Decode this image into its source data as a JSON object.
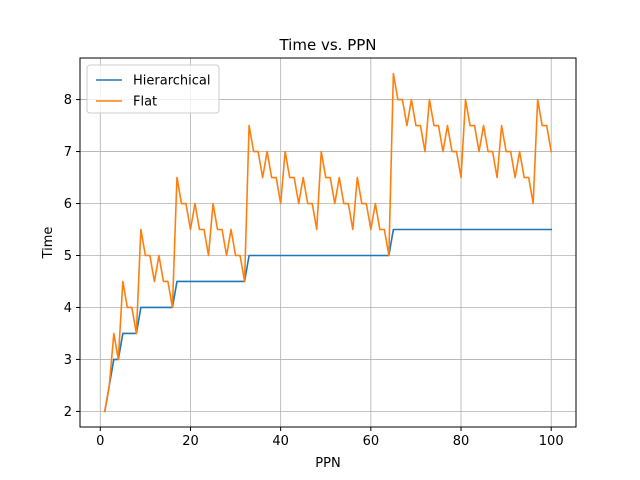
{
  "chart_data": {
    "type": "line",
    "title": "Time vs. PPN",
    "xlabel": "PPN",
    "ylabel": "Time",
    "xlim": [
      -4.5,
      105.5
    ],
    "ylim": [
      1.7,
      8.8
    ],
    "xticks": [
      0,
      20,
      40,
      60,
      80,
      100
    ],
    "yticks": [
      2,
      3,
      4,
      5,
      6,
      7,
      8
    ],
    "grid": true,
    "legend_position": "top-left",
    "colors": {
      "Hierarchical": "#1f77b4",
      "Flat": "#ff7f0e"
    },
    "x": [
      1,
      2,
      3,
      4,
      5,
      6,
      7,
      8,
      9,
      10,
      11,
      12,
      13,
      14,
      15,
      16,
      17,
      18,
      19,
      20,
      21,
      22,
      23,
      24,
      25,
      26,
      27,
      28,
      29,
      30,
      31,
      32,
      33,
      34,
      35,
      36,
      37,
      38,
      39,
      40,
      41,
      42,
      43,
      44,
      45,
      46,
      47,
      48,
      49,
      50,
      51,
      52,
      53,
      54,
      55,
      56,
      57,
      58,
      59,
      60,
      61,
      62,
      63,
      64,
      65,
      66,
      67,
      68,
      69,
      70,
      71,
      72,
      73,
      74,
      75,
      76,
      77,
      78,
      79,
      80,
      81,
      82,
      83,
      84,
      85,
      86,
      87,
      88,
      89,
      90,
      91,
      92,
      93,
      94,
      95,
      96,
      97,
      98,
      99,
      100
    ],
    "series": [
      {
        "name": "Hierarchical",
        "values": [
          2,
          2.5,
          3,
          3,
          3.5,
          3.5,
          3.5,
          3.5,
          4,
          4,
          4,
          4,
          4,
          4,
          4,
          4,
          4.5,
          4.5,
          4.5,
          4.5,
          4.5,
          4.5,
          4.5,
          4.5,
          4.5,
          4.5,
          4.5,
          4.5,
          4.5,
          4.5,
          4.5,
          4.5,
          5,
          5,
          5,
          5,
          5,
          5,
          5,
          5,
          5,
          5,
          5,
          5,
          5,
          5,
          5,
          5,
          5,
          5,
          5,
          5,
          5,
          5,
          5,
          5,
          5,
          5,
          5,
          5,
          5,
          5,
          5,
          5,
          5.5,
          5.5,
          5.5,
          5.5,
          5.5,
          5.5,
          5.5,
          5.5,
          5.5,
          5.5,
          5.5,
          5.5,
          5.5,
          5.5,
          5.5,
          5.5,
          5.5,
          5.5,
          5.5,
          5.5,
          5.5,
          5.5,
          5.5,
          5.5,
          5.5,
          5.5,
          5.5,
          5.5,
          5.5,
          5.5,
          5.5,
          5.5,
          5.5,
          5.5,
          5.5,
          5.5
        ]
      },
      {
        "name": "Flat",
        "values": [
          2,
          2.5,
          3.5,
          3,
          4.5,
          4,
          4,
          3.5,
          5.5,
          5,
          5,
          4.5,
          5,
          4.5,
          4.5,
          4,
          6.5,
          6,
          6,
          5.5,
          6,
          5.5,
          5.5,
          5,
          6,
          5.5,
          5.5,
          5,
          5.5,
          5,
          5,
          4.5,
          7.5,
          7,
          7,
          6.5,
          7,
          6.5,
          6.5,
          6,
          7,
          6.5,
          6.5,
          6,
          6.5,
          6,
          6,
          5.5,
          7,
          6.5,
          6.5,
          6,
          6.5,
          6,
          6,
          5.5,
          6.5,
          6,
          6,
          5.5,
          6,
          5.5,
          5.5,
          5,
          8.5,
          8,
          8,
          7.5,
          8,
          7.5,
          7.5,
          7,
          8,
          7.5,
          7.5,
          7,
          7.5,
          7,
          7,
          6.5,
          8,
          7.5,
          7.5,
          7,
          7.5,
          7,
          7,
          6.5,
          7.5,
          7,
          7,
          6.5,
          7,
          6.5,
          6.5,
          6,
          8,
          7.5,
          7.5,
          7
        ]
      }
    ]
  }
}
